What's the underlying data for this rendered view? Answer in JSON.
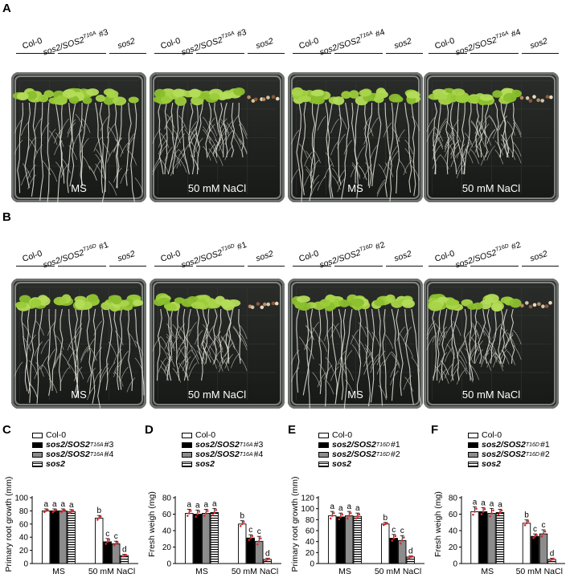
{
  "panels": {
    "A": {
      "letter": "A"
    },
    "B": {
      "letter": "B"
    },
    "C": {
      "letter": "C"
    },
    "D": {
      "letter": "D"
    },
    "E": {
      "letter": "E"
    },
    "F": {
      "letter": "F"
    }
  },
  "plates_A": [
    {
      "labels": [
        "Col-0",
        "sos2/SOS2",
        "T16A",
        "#3",
        "sos2"
      ],
      "condition": "MS",
      "seedlings": "healthy"
    },
    {
      "labels": [
        "Col-0",
        "sos2/SOS2",
        "T16A",
        "#3",
        "sos2"
      ],
      "condition": "50 mM NaCl",
      "seedlings": "salt"
    },
    {
      "labels": [
        "Col-0",
        "sos2/SOS2",
        "T16A",
        "#4",
        "sos2"
      ],
      "condition": "MS",
      "seedlings": "healthy"
    },
    {
      "labels": [
        "Col-0",
        "sos2/SOS2",
        "T16A",
        "#4",
        "sos2"
      ],
      "condition": "50 mM NaCl",
      "seedlings": "salt"
    }
  ],
  "plates_B": [
    {
      "labels": [
        "Col-0",
        "sos2/SOS2",
        "T16D",
        "#1",
        "sos2"
      ],
      "condition": "MS",
      "seedlings": "healthy"
    },
    {
      "labels": [
        "Col-0",
        "sos2/SOS2",
        "T16D",
        "#1",
        "sos2"
      ],
      "condition": "50 mM NaCl",
      "seedlings": "salt"
    },
    {
      "labels": [
        "Col-0",
        "sos2/SOS2",
        "T16D",
        "#2",
        "sos2"
      ],
      "condition": "MS",
      "seedlings": "healthy"
    },
    {
      "labels": [
        "Col-0",
        "sos2/SOS2",
        "T16D",
        "#2",
        "sos2"
      ],
      "condition": "50 mM NaCl",
      "seedlings": "salt"
    }
  ],
  "legend_CD": [
    "Col-0",
    "sos2/SOS2",
    "T16A",
    "#3",
    "#4",
    "sos2"
  ],
  "legend_EF": [
    "Col-0",
    "sos2/SOS2",
    "T16D",
    "#1",
    "#2",
    "sos2"
  ],
  "chart_data": [
    {
      "panel": "C",
      "type": "bar",
      "ylabel": "Primary root growth (mm)",
      "ylim": [
        0,
        100
      ],
      "yticks": [
        0,
        20,
        40,
        60,
        80,
        100
      ],
      "categories": [
        "MS",
        "50 mM NaCl"
      ],
      "series": [
        {
          "name": "Col-0",
          "values": [
            80,
            69
          ],
          "err": [
            3,
            4
          ],
          "letters": [
            "a",
            "b"
          ]
        },
        {
          "name": "sos2/SOS2 T16A #3",
          "values": [
            80,
            33
          ],
          "err": [
            3,
            5
          ],
          "letters": [
            "a",
            "c"
          ]
        },
        {
          "name": "sos2/SOS2 T16A #4",
          "values": [
            80,
            30
          ],
          "err": [
            3,
            4
          ],
          "letters": [
            "a",
            "c"
          ]
        },
        {
          "name": "sos2",
          "values": [
            79,
            12
          ],
          "err": [
            3,
            2
          ],
          "letters": [
            "a",
            "d"
          ]
        }
      ]
    },
    {
      "panel": "D",
      "type": "bar",
      "ylabel": "Fresh weigh (mg)",
      "ylim": [
        0,
        80
      ],
      "yticks": [
        0,
        20,
        40,
        60,
        80
      ],
      "categories": [
        "MS",
        "50 mM NaCl"
      ],
      "series": [
        {
          "name": "Col-0",
          "values": [
            61,
            48
          ],
          "err": [
            5,
            4
          ],
          "letters": [
            "a",
            "b"
          ]
        },
        {
          "name": "sos2/SOS2 T16A #3",
          "values": [
            60,
            31
          ],
          "err": [
            5,
            4
          ],
          "letters": [
            "a",
            "c"
          ]
        },
        {
          "name": "sos2/SOS2 T16A #4",
          "values": [
            61,
            27
          ],
          "err": [
            5,
            6
          ],
          "letters": [
            "a",
            "c"
          ]
        },
        {
          "name": "sos2",
          "values": [
            62,
            5
          ],
          "err": [
            5,
            1.5
          ],
          "letters": [
            "a",
            "d"
          ]
        }
      ]
    },
    {
      "panel": "E",
      "type": "bar",
      "ylabel": "Primary root growth (mm)",
      "ylim": [
        0,
        120
      ],
      "yticks": [
        0,
        20,
        40,
        60,
        80,
        100,
        120
      ],
      "categories": [
        "MS",
        "50 mM NaCl"
      ],
      "series": [
        {
          "name": "Col-0",
          "values": [
            87,
            72
          ],
          "err": [
            8,
            3
          ],
          "letters": [
            "a",
            "b"
          ]
        },
        {
          "name": "sos2/SOS2 T16D #1",
          "values": [
            85,
            46
          ],
          "err": [
            7,
            7
          ],
          "letters": [
            "a",
            "c"
          ]
        },
        {
          "name": "sos2/SOS2 T16D #2",
          "values": [
            87,
            42
          ],
          "err": [
            8,
            9
          ],
          "letters": [
            "a",
            "c"
          ]
        },
        {
          "name": "sos2",
          "values": [
            86,
            12
          ],
          "err": [
            6,
            2
          ],
          "letters": [
            "a",
            "d"
          ]
        }
      ]
    },
    {
      "panel": "F",
      "type": "bar",
      "ylabel": "Fresh weigh (mg)",
      "ylim": [
        0,
        80
      ],
      "yticks": [
        0,
        20,
        40,
        60,
        80
      ],
      "categories": [
        "MS",
        "50 mM NaCl"
      ],
      "series": [
        {
          "name": "Col-0",
          "values": [
            63,
            49
          ],
          "err": [
            6,
            4
          ],
          "letters": [
            "a",
            "b"
          ]
        },
        {
          "name": "sos2/SOS2 T16D #1",
          "values": [
            63,
            33
          ],
          "err": [
            5,
            3
          ],
          "letters": [
            "a",
            "c"
          ]
        },
        {
          "name": "sos2/SOS2 T16D #2",
          "values": [
            61,
            36
          ],
          "err": [
            6,
            5
          ],
          "letters": [
            "a",
            "c"
          ]
        },
        {
          "name": "sos2",
          "values": [
            62,
            5
          ],
          "err": [
            4,
            1.5
          ],
          "letters": [
            "a",
            "d"
          ]
        }
      ]
    }
  ],
  "colors": {
    "bar_colors": [
      "#ffffff",
      "#000000",
      "#8c8c8c",
      "striped"
    ],
    "error_bar": "#d62a2a",
    "leaf_green": "#9ccc3a"
  }
}
